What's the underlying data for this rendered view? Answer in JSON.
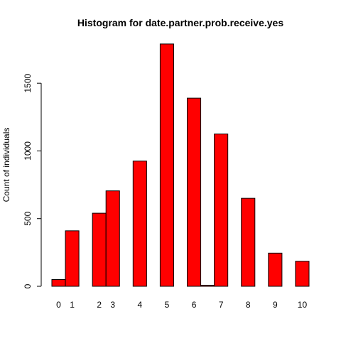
{
  "chart_data": {
    "type": "bar",
    "title": "Histogram for date.partner.prob.receive.yes",
    "xlabel": "",
    "ylabel": "Count of individuals",
    "bar_color": "#ff0000",
    "bins": [
      {
        "x0": 0.0,
        "x1": 0.5,
        "value": 50
      },
      {
        "x0": 0.5,
        "x1": 1.0,
        "value": 410
      },
      {
        "x0": 1.0,
        "x1": 1.5,
        "value": 0
      },
      {
        "x0": 1.5,
        "x1": 2.0,
        "value": 540
      },
      {
        "x0": 2.0,
        "x1": 2.5,
        "value": 705
      },
      {
        "x0": 2.5,
        "x1": 3.0,
        "value": 0
      },
      {
        "x0": 3.0,
        "x1": 3.5,
        "value": 925
      },
      {
        "x0": 3.5,
        "x1": 4.0,
        "value": 0
      },
      {
        "x0": 4.0,
        "x1": 4.5,
        "value": 1790
      },
      {
        "x0": 4.5,
        "x1": 5.0,
        "value": 0
      },
      {
        "x0": 5.0,
        "x1": 5.5,
        "value": 1390
      },
      {
        "x0": 5.5,
        "x1": 6.0,
        "value": 8
      },
      {
        "x0": 6.0,
        "x1": 6.5,
        "value": 1125
      },
      {
        "x0": 6.5,
        "x1": 7.0,
        "value": 0
      },
      {
        "x0": 7.0,
        "x1": 7.5,
        "value": 650
      },
      {
        "x0": 7.5,
        "x1": 8.0,
        "value": 0
      },
      {
        "x0": 8.0,
        "x1": 8.5,
        "value": 245
      },
      {
        "x0": 8.5,
        "x1": 9.0,
        "value": 0
      },
      {
        "x0": 9.0,
        "x1": 9.5,
        "value": 185
      }
    ],
    "x_tick_labels": [
      {
        "label": "0",
        "x": 0.25
      },
      {
        "label": "1",
        "x": 0.75
      },
      {
        "label": "2",
        "x": 1.75
      },
      {
        "label": "3",
        "x": 2.25
      },
      {
        "label": "4",
        "x": 3.25
      },
      {
        "label": "5",
        "x": 4.25
      },
      {
        "label": "6",
        "x": 5.25
      },
      {
        "label": "7",
        "x": 6.25
      },
      {
        "label": "8",
        "x": 7.25
      },
      {
        "label": "9",
        "x": 8.25
      },
      {
        "label": "10",
        "x": 9.25
      }
    ],
    "y_ticks": [
      0,
      500,
      1000,
      1500
    ],
    "xlim": [
      0,
      9.5
    ],
    "ylim": [
      0,
      1800
    ],
    "grid": false,
    "legend": "none"
  }
}
